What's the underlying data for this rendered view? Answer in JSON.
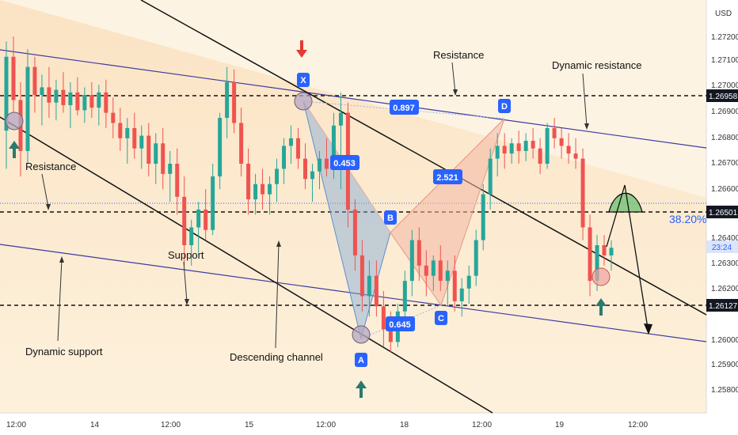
{
  "chart_data": {
    "type": "candlestick",
    "currency": "USD",
    "y_range": [
      1.2575,
      1.273
    ],
    "x_tick_labels": [
      "12:00",
      "14",
      "12:00",
      "15",
      "12:00",
      "18",
      "12:00",
      "19",
      "12:00"
    ],
    "y_tick_labels": [
      "1.27200",
      "1.27100",
      "1.27000",
      "1.26900",
      "1.26800",
      "1.26700",
      "1.26600",
      "1.26400",
      "1.26300",
      "1.26200",
      "1.26000",
      "1.25900",
      "1.25800"
    ],
    "price_labels": [
      {
        "text": "1.26958",
        "style": "black"
      },
      {
        "text": "1.26501",
        "style": "black"
      },
      {
        "text": "23:24",
        "style": "blue"
      },
      {
        "text": "1.26127",
        "style": "black"
      }
    ],
    "levels": [
      {
        "value": 1.26958,
        "style": "dashed"
      },
      {
        "value": 1.26501,
        "style": "dashed"
      },
      {
        "value": 1.26127,
        "style": "dashed"
      },
      {
        "value": 1.2653,
        "style": "dotted-blue"
      }
    ],
    "fib_label": "38.20%",
    "pattern_points": [
      {
        "label": "X",
        "price": 1.26958
      },
      {
        "label": "A",
        "price": 1.25975
      },
      {
        "label": "B",
        "price": 1.2642
      },
      {
        "label": "C",
        "price": 1.26127
      },
      {
        "label": "D",
        "price": 1.2687
      }
    ],
    "ratios": [
      "0.897",
      "0.453",
      "2.521",
      "0.645"
    ],
    "annotations": [
      "Resistance",
      "Dynamic resistance",
      "Resistance",
      "Support",
      "Dynamic support",
      "Descending channel"
    ],
    "candles": [
      [
        1.2683,
        1.2718,
        1.2668,
        1.2712
      ],
      [
        1.2712,
        1.272,
        1.269,
        1.2695
      ],
      [
        1.2695,
        1.2702,
        1.2665,
        1.2675
      ],
      [
        1.2675,
        1.2715,
        1.267,
        1.2708
      ],
      [
        1.2708,
        1.2712,
        1.269,
        1.2697
      ],
      [
        1.2697,
        1.2705,
        1.2685,
        1.27
      ],
      [
        1.27,
        1.2708,
        1.2688,
        1.2694
      ],
      [
        1.2694,
        1.2703,
        1.2687,
        1.2699
      ],
      [
        1.2699,
        1.2706,
        1.269,
        1.2693
      ],
      [
        1.2693,
        1.2702,
        1.2684,
        1.2698
      ],
      [
        1.2698,
        1.2704,
        1.2689,
        1.2691
      ],
      [
        1.2691,
        1.27,
        1.2686,
        1.2697
      ],
      [
        1.2697,
        1.2702,
        1.2688,
        1.2692
      ],
      [
        1.2692,
        1.2701,
        1.2685,
        1.2698
      ],
      [
        1.2698,
        1.2703,
        1.2684,
        1.269
      ],
      [
        1.269,
        1.2696,
        1.268,
        1.2686
      ],
      [
        1.2686,
        1.2692,
        1.2675,
        1.268
      ],
      [
        1.268,
        1.2688,
        1.267,
        1.2684
      ],
      [
        1.2684,
        1.269,
        1.2672,
        1.2676
      ],
      [
        1.2676,
        1.2685,
        1.2668,
        1.2681
      ],
      [
        1.2681,
        1.2686,
        1.2665,
        1.267
      ],
      [
        1.267,
        1.2682,
        1.2662,
        1.2678
      ],
      [
        1.2678,
        1.2684,
        1.266,
        1.2666
      ],
      [
        1.2666,
        1.2675,
        1.2655,
        1.267
      ],
      [
        1.267,
        1.2676,
        1.265,
        1.2657
      ],
      [
        1.2657,
        1.2665,
        1.263,
        1.2638
      ],
      [
        1.2638,
        1.2648,
        1.263,
        1.2645
      ],
      [
        1.2645,
        1.2655,
        1.2635,
        1.2652
      ],
      [
        1.2652,
        1.266,
        1.264,
        1.2644
      ],
      [
        1.2644,
        1.267,
        1.2642,
        1.2665
      ],
      [
        1.2665,
        1.269,
        1.266,
        1.2688
      ],
      [
        1.2688,
        1.2708,
        1.268,
        1.2702
      ],
      [
        1.2702,
        1.2707,
        1.2682,
        1.2686
      ],
      [
        1.2686,
        1.2692,
        1.2665,
        1.267
      ],
      [
        1.267,
        1.2676,
        1.265,
        1.2656
      ],
      [
        1.2656,
        1.2666,
        1.265,
        1.2662
      ],
      [
        1.2662,
        1.2668,
        1.2652,
        1.2658
      ],
      [
        1.2658,
        1.2665,
        1.265,
        1.2662
      ],
      [
        1.2662,
        1.2672,
        1.2655,
        1.2668
      ],
      [
        1.2668,
        1.268,
        1.2662,
        1.2677
      ],
      [
        1.2677,
        1.2685,
        1.267,
        1.268
      ],
      [
        1.268,
        1.2684,
        1.2668,
        1.2672
      ],
      [
        1.2672,
        1.2678,
        1.266,
        1.2664
      ],
      [
        1.2664,
        1.267,
        1.2655,
        1.2667
      ],
      [
        1.2667,
        1.2675,
        1.266,
        1.2672
      ],
      [
        1.2672,
        1.268,
        1.2665,
        1.2668
      ],
      [
        1.2668,
        1.269,
        1.2664,
        1.2685
      ],
      [
        1.2685,
        1.2698,
        1.266,
        1.269
      ],
      [
        1.269,
        1.2694,
        1.2645,
        1.2652
      ],
      [
        1.2652,
        1.2656,
        1.2628,
        1.2634
      ],
      [
        1.2634,
        1.264,
        1.2612,
        1.2618
      ],
      [
        1.2618,
        1.2632,
        1.261,
        1.2626
      ],
      [
        1.2626,
        1.2632,
        1.261,
        1.2614
      ],
      [
        1.2614,
        1.262,
        1.2598,
        1.2605
      ],
      [
        1.2605,
        1.2612,
        1.2596,
        1.26
      ],
      [
        1.26,
        1.2615,
        1.2598,
        1.2612
      ],
      [
        1.2612,
        1.2628,
        1.2608,
        1.2624
      ],
      [
        1.2624,
        1.2644,
        1.2618,
        1.264
      ],
      [
        1.264,
        1.2645,
        1.2624,
        1.263
      ],
      [
        1.263,
        1.2636,
        1.2618,
        1.2626
      ],
      [
        1.2626,
        1.2634,
        1.262,
        1.2632
      ],
      [
        1.2632,
        1.2638,
        1.262,
        1.2624
      ],
      [
        1.2624,
        1.2632,
        1.2614,
        1.2628
      ],
      [
        1.2628,
        1.2634,
        1.2612,
        1.2616
      ],
      [
        1.2616,
        1.2625,
        1.261,
        1.2621
      ],
      [
        1.2621,
        1.263,
        1.2615,
        1.2626
      ],
      [
        1.2626,
        1.2644,
        1.2622,
        1.264
      ],
      [
        1.264,
        1.2662,
        1.2636,
        1.2658
      ],
      [
        1.2658,
        1.2676,
        1.2652,
        1.2672
      ],
      [
        1.2672,
        1.2682,
        1.2665,
        1.2677
      ],
      [
        1.2677,
        1.2682,
        1.2668,
        1.2674
      ],
      [
        1.2674,
        1.268,
        1.267,
        1.2678
      ],
      [
        1.2678,
        1.2683,
        1.267,
        1.2675
      ],
      [
        1.2675,
        1.2682,
        1.2671,
        1.2679
      ],
      [
        1.2679,
        1.2684,
        1.2672,
        1.2676
      ],
      [
        1.2676,
        1.268,
        1.2666,
        1.267
      ],
      [
        1.267,
        1.2686,
        1.2668,
        1.2684
      ],
      [
        1.2684,
        1.2688,
        1.2676,
        1.268
      ],
      [
        1.268,
        1.2684,
        1.2672,
        1.2677
      ],
      [
        1.2677,
        1.2682,
        1.267,
        1.2674
      ],
      [
        1.2674,
        1.268,
        1.2668,
        1.2672
      ],
      [
        1.2672,
        1.2676,
        1.264,
        1.2645
      ],
      [
        1.2645,
        1.265,
        1.2618,
        1.2624
      ],
      [
        1.2624,
        1.2642,
        1.262,
        1.2638
      ],
      [
        1.2638,
        1.2642,
        1.263,
        1.2634
      ],
      [
        1.2634,
        1.264,
        1.2628,
        1.2637
      ]
    ]
  }
}
